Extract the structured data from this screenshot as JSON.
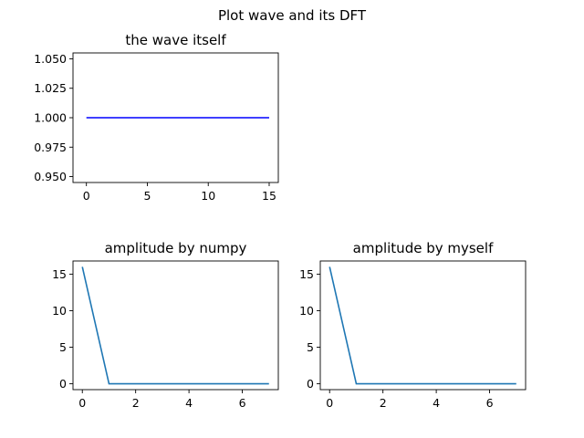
{
  "figure_title": "Plot wave and its DFT",
  "colors": {
    "wave": "#0000ff",
    "amplitude": "#1f77b4"
  },
  "chart_data": [
    {
      "type": "line",
      "title": "the wave itself",
      "xlabel": "",
      "ylabel": "",
      "x": [
        0,
        1,
        2,
        3,
        4,
        5,
        6,
        7,
        8,
        9,
        10,
        11,
        12,
        13,
        14,
        15
      ],
      "series": [
        {
          "values": [
            1,
            1,
            1,
            1,
            1,
            1,
            1,
            1,
            1,
            1,
            1,
            1,
            1,
            1,
            1,
            1
          ]
        }
      ],
      "xlim": [
        -1.1,
        15.75
      ],
      "ylim": [
        0.945,
        1.055
      ],
      "xticks": [
        0,
        5,
        10,
        15
      ],
      "xtick_labels": [
        "0",
        "5",
        "10",
        "15"
      ],
      "yticks": [
        0.95,
        0.975,
        1.0,
        1.025,
        1.05
      ],
      "ytick_labels": [
        "0.950",
        "0.975",
        "1.000",
        "1.025",
        "1.050"
      ],
      "grid": false
    },
    {
      "type": "line",
      "title": "amplitude by numpy",
      "xlabel": "",
      "ylabel": "",
      "x": [
        0,
        1,
        2,
        3,
        4,
        5,
        6,
        7
      ],
      "series": [
        {
          "values": [
            16,
            0,
            0,
            0,
            0,
            0,
            0,
            0
          ]
        }
      ],
      "xlim": [
        -0.35,
        7.35
      ],
      "ylim": [
        -0.8,
        16.8
      ],
      "xticks": [
        0,
        2,
        4,
        6
      ],
      "xtick_labels": [
        "0",
        "2",
        "4",
        "6"
      ],
      "yticks": [
        0,
        5,
        10,
        15
      ],
      "ytick_labels": [
        "0",
        "5",
        "10",
        "15"
      ],
      "grid": false
    },
    {
      "type": "line",
      "title": "amplitude by myself",
      "xlabel": "",
      "ylabel": "",
      "x": [
        0,
        1,
        2,
        3,
        4,
        5,
        6,
        7
      ],
      "series": [
        {
          "values": [
            16,
            0,
            0,
            0,
            0,
            0,
            0,
            0
          ]
        }
      ],
      "xlim": [
        -0.35,
        7.35
      ],
      "ylim": [
        -0.8,
        16.8
      ],
      "xticks": [
        0,
        2,
        4,
        6
      ],
      "xtick_labels": [
        "0",
        "2",
        "4",
        "6"
      ],
      "yticks": [
        0,
        5,
        10,
        15
      ],
      "ytick_labels": [
        "0",
        "5",
        "10",
        "15"
      ],
      "grid": false
    }
  ]
}
